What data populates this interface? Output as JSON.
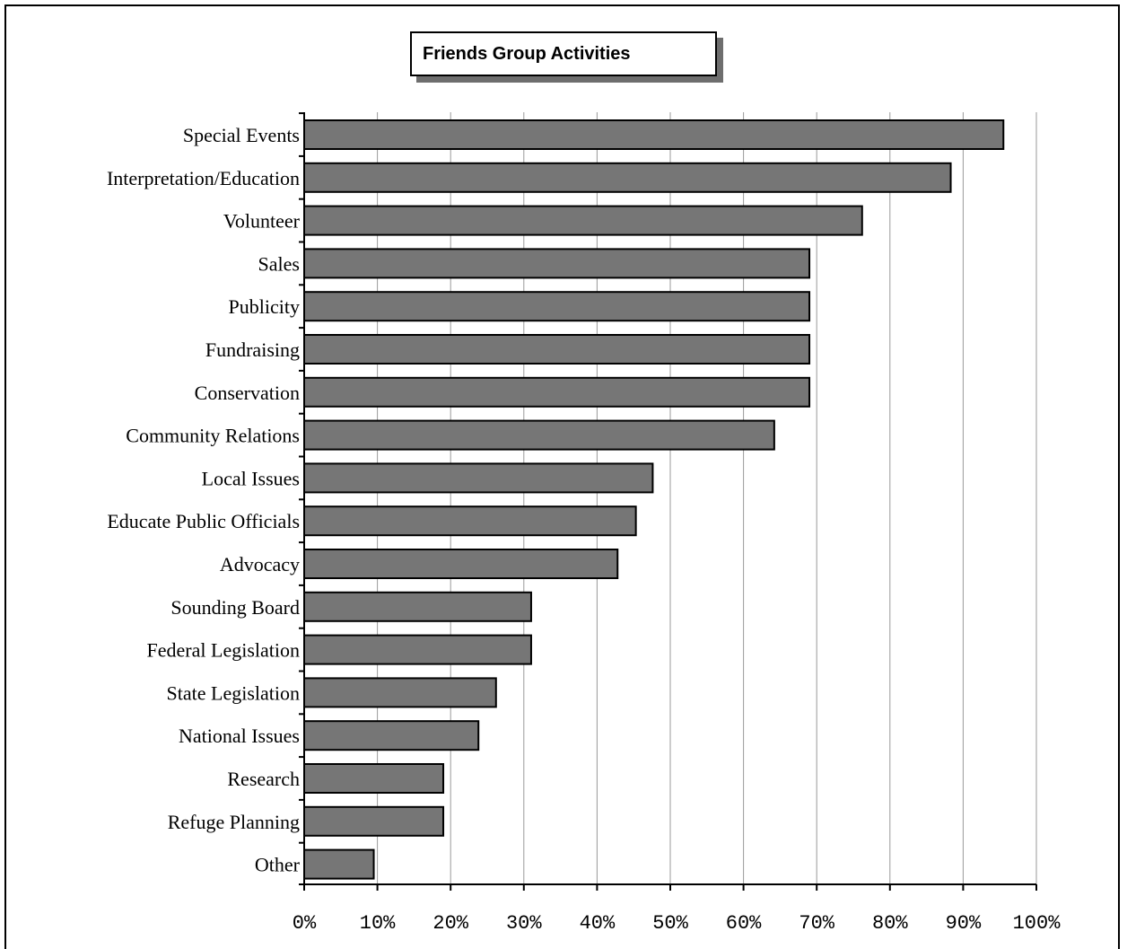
{
  "chart_data": {
    "type": "bar",
    "orientation": "horizontal",
    "title": "Friends Group Activities",
    "categories": [
      "Special Events",
      "Interpretation/Education",
      "Volunteer",
      "Sales",
      "Publicity",
      "Fundraising",
      "Conservation",
      "Community  Relations",
      "Local Issues",
      "Educate Public Officials",
      "Advocacy",
      "Sounding  Board",
      "Federal Legislation",
      "State  Legislation",
      "National  Issues",
      "Research",
      "Refuge  Planning",
      "Other"
    ],
    "values": [
      95.5,
      88.3,
      76.2,
      69.0,
      69.0,
      69.0,
      69.0,
      64.2,
      47.6,
      45.3,
      42.8,
      31.0,
      31.0,
      26.2,
      23.8,
      19.0,
      19.0,
      9.5
    ],
    "xlim": [
      0,
      100
    ],
    "xticks": [
      0,
      10,
      20,
      30,
      40,
      50,
      60,
      70,
      80,
      90,
      100
    ],
    "xtick_labels": [
      "0%",
      "10%",
      "20%",
      "30%",
      "40%",
      "50%",
      "60%",
      "70%",
      "80%",
      "90%",
      "100%"
    ],
    "grid": "vertical",
    "legend": "none",
    "colors": {
      "bar": "#767676",
      "bar_edge": "#000000",
      "grid": "#9a9a9a",
      "title_shadow": "#6e6e6e"
    }
  }
}
